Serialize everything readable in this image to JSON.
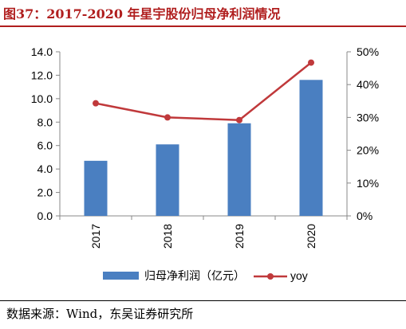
{
  "title": "图37：2017-2020 年星宇股份归母净利润情况",
  "source": "数据来源：Wind，东吴证券研究所",
  "colors": {
    "bar": "#4a7fc1",
    "line": "#c0393b",
    "title": "#b01e1e"
  },
  "chart_data": {
    "type": "bar",
    "categories": [
      "2017",
      "2018",
      "2019",
      "2020"
    ],
    "series": [
      {
        "name": "归母净利润（亿元）",
        "type": "bar",
        "axis": "left",
        "values": [
          4.7,
          6.1,
          7.9,
          11.6
        ]
      },
      {
        "name": "yoy",
        "type": "line",
        "axis": "right",
        "values": [
          0.343,
          0.3,
          0.292,
          0.467
        ]
      }
    ],
    "y_left": {
      "min": 0,
      "max": 14,
      "ticks": [
        "0.0",
        "2.0",
        "4.0",
        "6.0",
        "8.0",
        "10.0",
        "12.0",
        "14.0"
      ]
    },
    "y_right": {
      "min": 0,
      "max": 0.5,
      "ticks": [
        "0%",
        "10%",
        "20%",
        "30%",
        "40%",
        "50%"
      ]
    },
    "grid": false,
    "legend_position": "bottom"
  }
}
